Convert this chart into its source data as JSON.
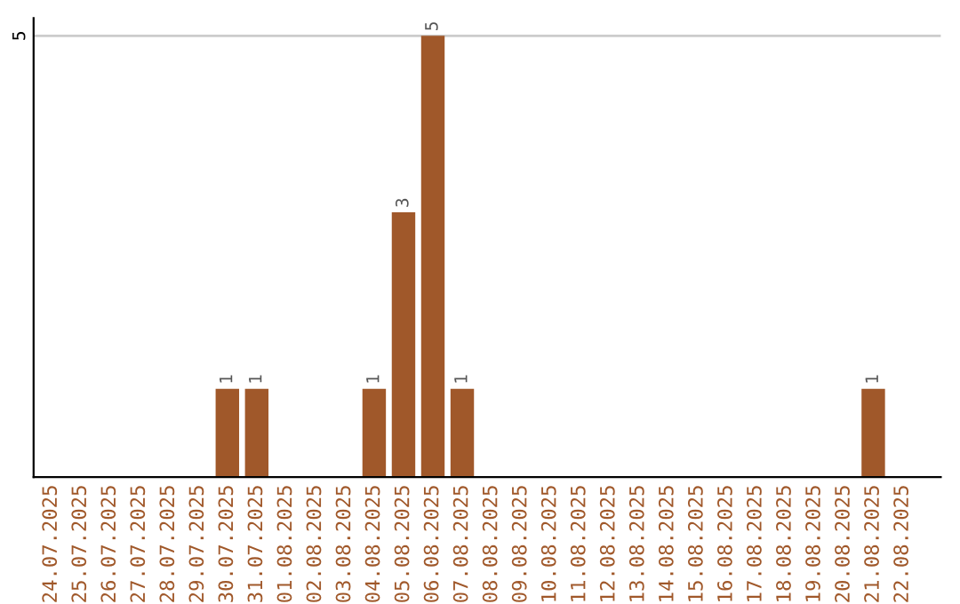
{
  "chart_data": {
    "type": "bar",
    "categories": [
      "24.07.2025",
      "25.07.2025",
      "26.07.2025",
      "27.07.2025",
      "28.07.2025",
      "29.07.2025",
      "30.07.2025",
      "31.07.2025",
      "01.08.2025",
      "02.08.2025",
      "03.08.2025",
      "04.08.2025",
      "05.08.2025",
      "06.08.2025",
      "07.08.2025",
      "08.08.2025",
      "09.08.2025",
      "10.08.2025",
      "11.08.2025",
      "12.08.2025",
      "13.08.2025",
      "14.08.2025",
      "15.08.2025",
      "16.08.2025",
      "17.08.2025",
      "18.08.2025",
      "19.08.2025",
      "20.08.2025",
      "21.08.2025",
      "22.08.2025"
    ],
    "values": [
      0,
      0,
      0,
      0,
      0,
      0,
      1,
      1,
      0,
      0,
      0,
      1,
      3,
      5,
      1,
      0,
      0,
      0,
      0,
      0,
      0,
      0,
      0,
      0,
      0,
      0,
      0,
      0,
      1,
      0
    ],
    "value_labels": [
      null,
      null,
      null,
      null,
      null,
      null,
      "1",
      "1",
      null,
      null,
      null,
      "1",
      "3",
      "5",
      "1",
      null,
      null,
      null,
      null,
      null,
      null,
      null,
      null,
      null,
      null,
      null,
      null,
      null,
      "1",
      null
    ],
    "color": "#a0582a",
    "ylim": [
      0,
      5.2
    ],
    "yticks": [
      5
    ],
    "grid": "y"
  }
}
